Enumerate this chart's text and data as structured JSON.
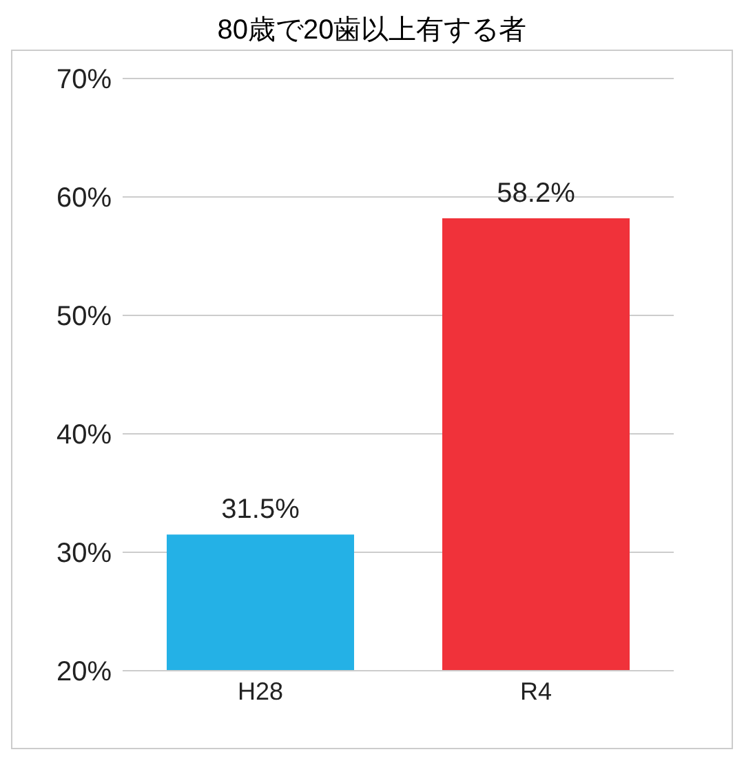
{
  "chart_data": {
    "type": "bar",
    "title": "80歳で20歯以上有する者",
    "categories": [
      "H28",
      "R4"
    ],
    "values": [
      31.5,
      58.2
    ],
    "colors": [
      "#24b1e6",
      "#f0323a"
    ],
    "value_labels": [
      "31.5%",
      "58.2%"
    ],
    "ylim": [
      20,
      70
    ],
    "yticks": [
      {
        "value": 20,
        "label": "20%"
      },
      {
        "value": 30,
        "label": "30%"
      },
      {
        "value": 40,
        "label": "40%"
      },
      {
        "value": 50,
        "label": "50%"
      },
      {
        "value": 60,
        "label": "60%"
      },
      {
        "value": 70,
        "label": "70%"
      }
    ],
    "grid": "y"
  }
}
